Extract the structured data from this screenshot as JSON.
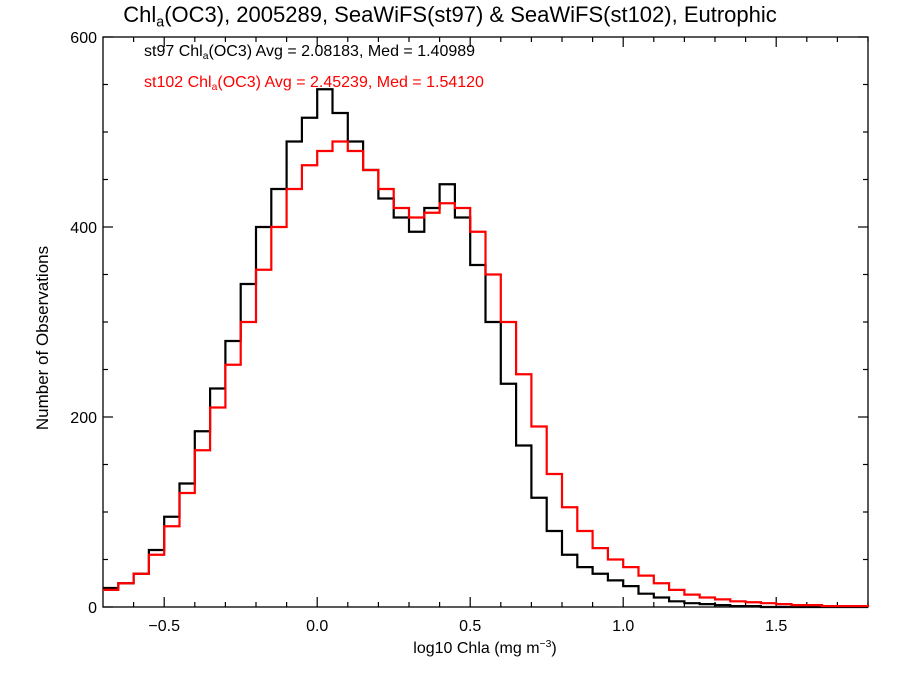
{
  "chart_data": {
    "type": "line",
    "title_parts": [
      "Chl",
      "a",
      "(OC3), 2005289, SeaWiFS(st97) & SeaWiFS(st102), Eutrophic"
    ],
    "xlabel_parts": [
      "log10 Chla (mg m",
      "−3",
      ")"
    ],
    "ylabel": "Number of Observations",
    "xlim": [
      -0.7,
      1.8
    ],
    "ylim": [
      0,
      600
    ],
    "x_ticks": [
      -0.5,
      0.0,
      0.5,
      1.0,
      1.5
    ],
    "x_tick_labels": [
      "−0.5",
      "0.0",
      "0.5",
      "1.0",
      "1.5"
    ],
    "y_ticks": [
      0,
      200,
      400,
      600
    ],
    "y_tick_labels": [
      "0",
      "200",
      "400",
      "600"
    ],
    "series": [
      {
        "legend_parts": [
          "st97 Chl",
          "a",
          "(OC3) Avg = 2.08183, Med = 1.40989"
        ],
        "color": "#000000",
        "x": [
          -0.7,
          -0.65,
          -0.6,
          -0.55,
          -0.5,
          -0.45,
          -0.4,
          -0.35,
          -0.3,
          -0.25,
          -0.2,
          -0.15,
          -0.1,
          -0.05,
          0.0,
          0.05,
          0.1,
          0.15,
          0.2,
          0.25,
          0.3,
          0.35,
          0.4,
          0.45,
          0.5,
          0.55,
          0.6,
          0.65,
          0.7,
          0.75,
          0.8,
          0.85,
          0.9,
          0.95,
          1.0,
          1.05,
          1.1,
          1.15,
          1.2,
          1.25,
          1.3,
          1.35,
          1.4,
          1.45,
          1.5,
          1.55,
          1.6,
          1.65,
          1.7,
          1.75,
          1.8
        ],
        "y": [
          20,
          25,
          35,
          60,
          95,
          130,
          185,
          230,
          280,
          340,
          400,
          440,
          490,
          515,
          545,
          520,
          490,
          460,
          430,
          410,
          395,
          420,
          445,
          410,
          360,
          300,
          235,
          170,
          115,
          80,
          55,
          42,
          35,
          28,
          22,
          14,
          10,
          6,
          4,
          3,
          2,
          1,
          1,
          0,
          0,
          0,
          0,
          0,
          0,
          0,
          0
        ]
      },
      {
        "legend_parts": [
          "st102 Chl",
          "a",
          "(OC3) Avg = 2.45239, Med = 1.54120"
        ],
        "color": "#ff0000",
        "x": [
          -0.7,
          -0.65,
          -0.6,
          -0.55,
          -0.5,
          -0.45,
          -0.4,
          -0.35,
          -0.3,
          -0.25,
          -0.2,
          -0.15,
          -0.1,
          -0.05,
          0.0,
          0.05,
          0.1,
          0.15,
          0.2,
          0.25,
          0.3,
          0.35,
          0.4,
          0.45,
          0.5,
          0.55,
          0.6,
          0.65,
          0.7,
          0.75,
          0.8,
          0.85,
          0.9,
          0.95,
          1.0,
          1.05,
          1.1,
          1.15,
          1.2,
          1.25,
          1.3,
          1.35,
          1.4,
          1.45,
          1.5,
          1.55,
          1.6,
          1.65,
          1.7,
          1.75,
          1.8
        ],
        "y": [
          18,
          25,
          35,
          55,
          85,
          120,
          165,
          210,
          255,
          300,
          355,
          400,
          440,
          465,
          480,
          490,
          480,
          460,
          440,
          420,
          410,
          415,
          425,
          420,
          395,
          350,
          300,
          245,
          190,
          140,
          105,
          80,
          62,
          50,
          42,
          33,
          25,
          18,
          13,
          10,
          8,
          6,
          5,
          4,
          3,
          2,
          2,
          1,
          1,
          1,
          0
        ]
      }
    ]
  }
}
